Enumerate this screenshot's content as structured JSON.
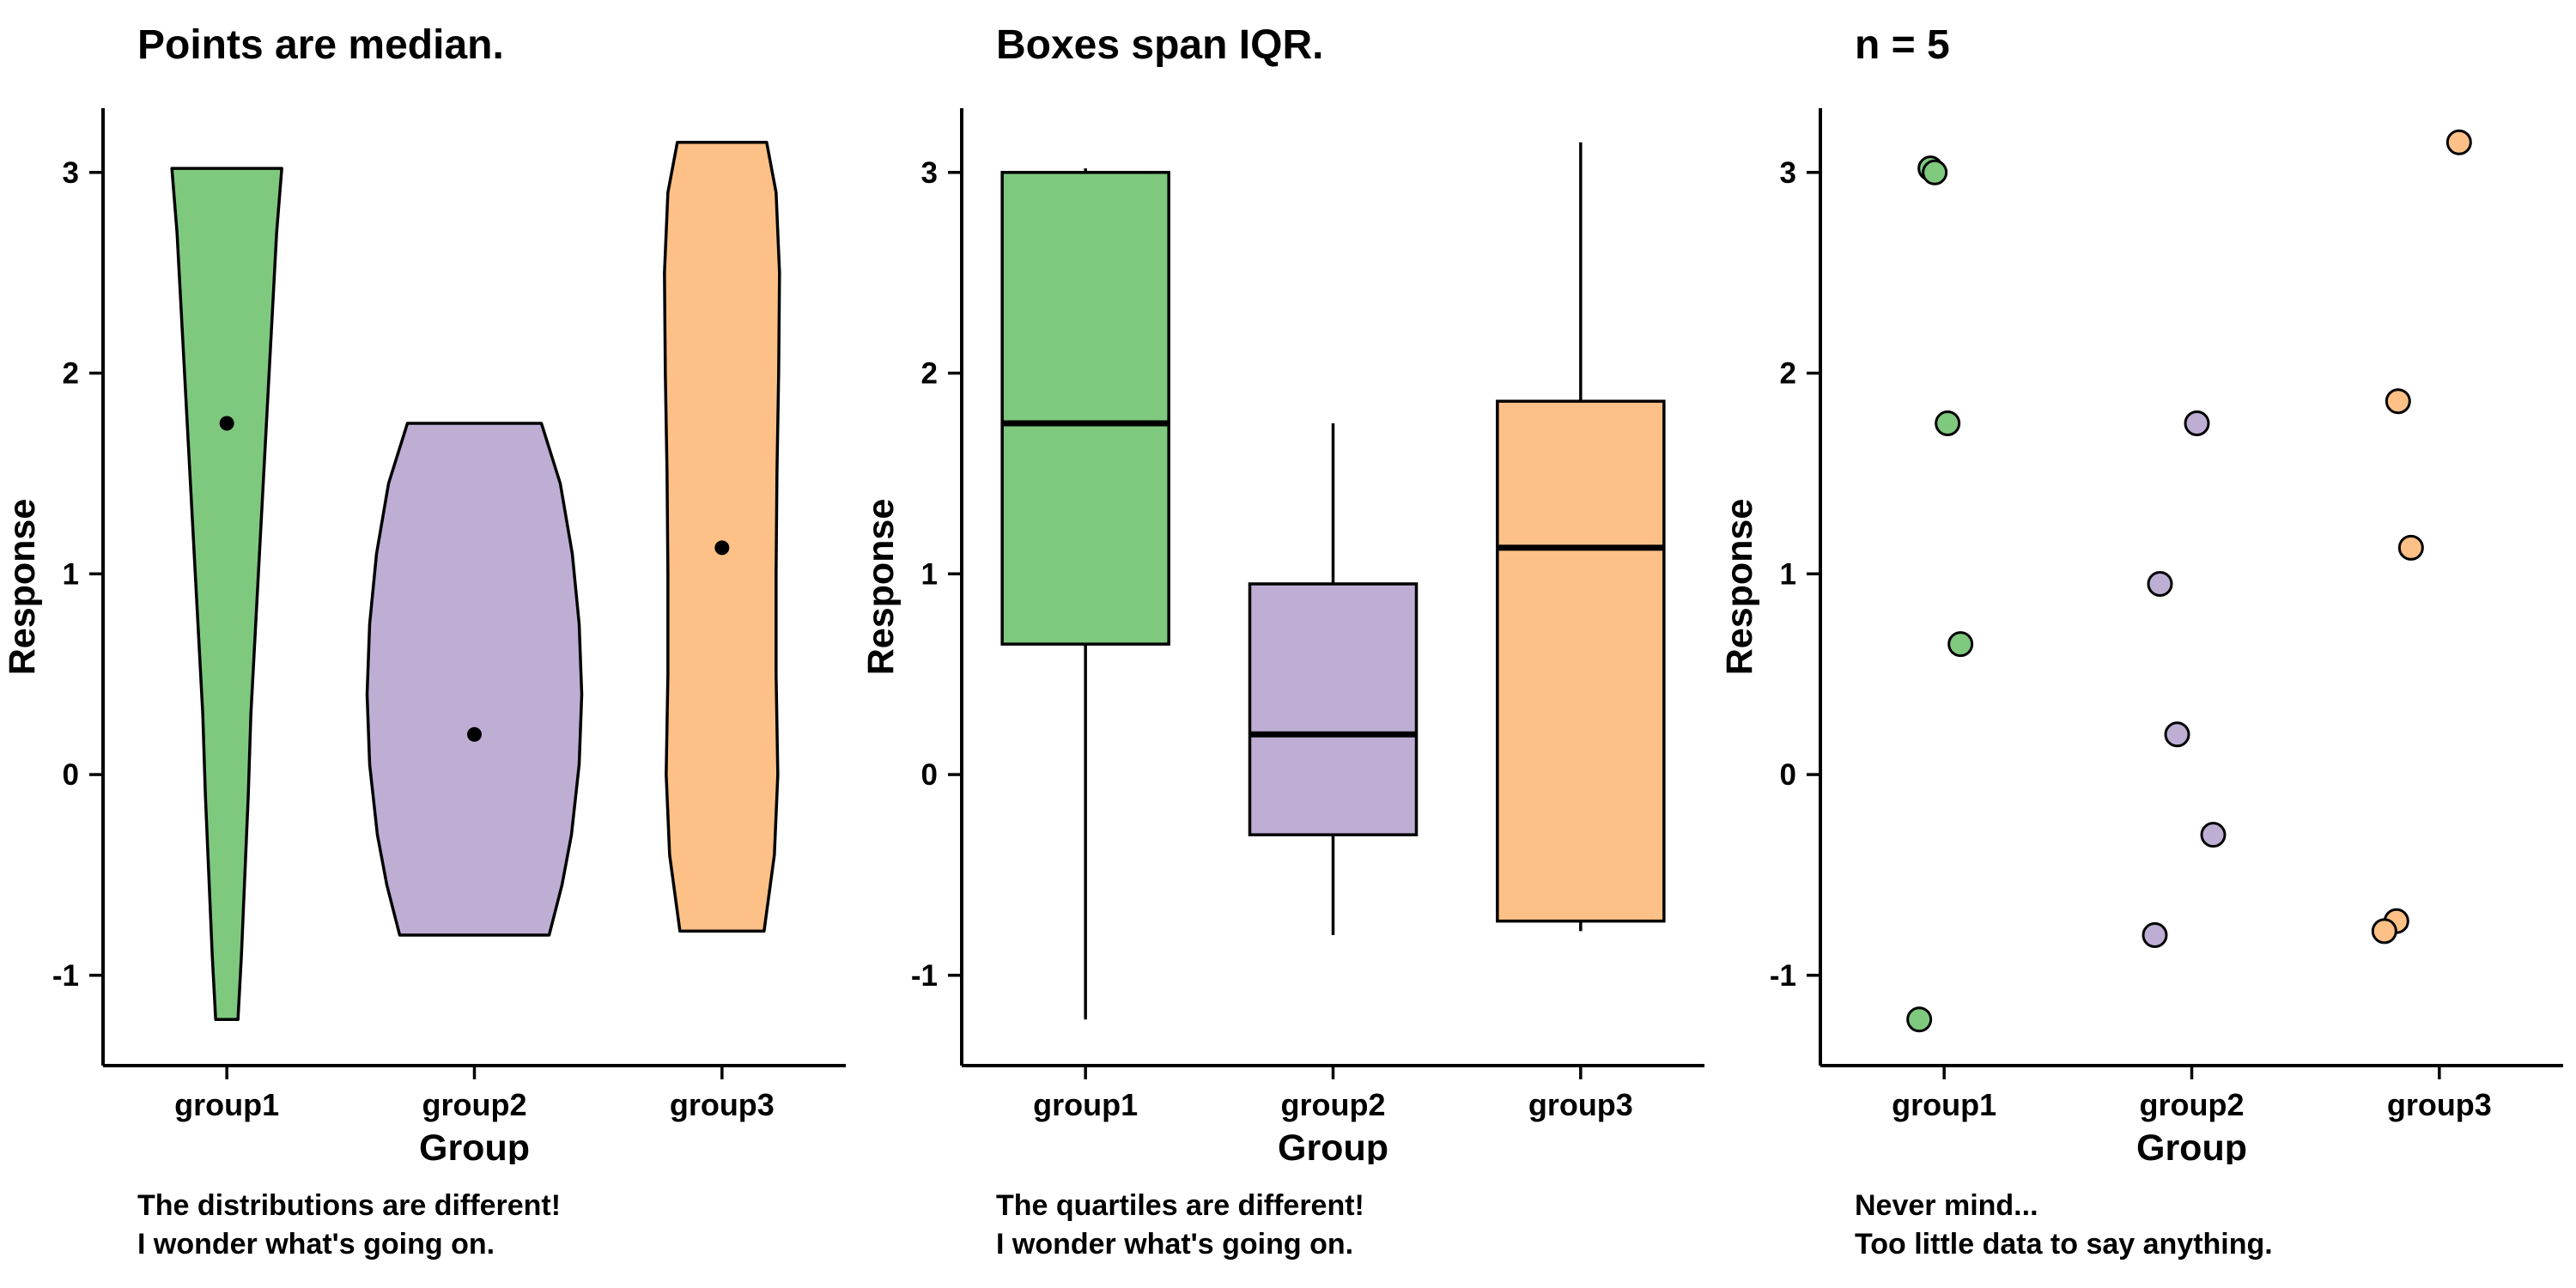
{
  "colors": {
    "group1": "#7FC97F",
    "group2": "#BEAED4",
    "group3": "#FDC086",
    "axis": "#000000",
    "background": "#FFFFFF"
  },
  "chart_data": [
    {
      "type": "violin",
      "title": "Points are median.",
      "xlabel": "Group",
      "ylabel": "Response",
      "categories": [
        "group1",
        "group2",
        "group3"
      ],
      "yticks": [
        -1,
        0,
        1,
        2,
        3
      ],
      "ylim": [
        -1.45,
        3.32
      ],
      "grid": false,
      "medians": [
        1.75,
        0.2,
        1.13
      ],
      "violins": [
        {
          "group": "group1",
          "color": "#7FC97F",
          "outline": [
            [
              3.02,
              64
            ],
            [
              2.7,
              58
            ],
            [
              2.3,
              53
            ],
            [
              1.9,
              48
            ],
            [
              1.5,
              43
            ],
            [
              1.1,
              38
            ],
            [
              0.7,
              33
            ],
            [
              0.3,
              28
            ],
            [
              -0.1,
              25
            ],
            [
              -0.5,
              21
            ],
            [
              -0.9,
              17
            ],
            [
              -1.22,
              13
            ]
          ]
        },
        {
          "group": "group2",
          "color": "#BEAED4",
          "outline": [
            [
              1.75,
              78
            ],
            [
              1.45,
              100
            ],
            [
              1.1,
              114
            ],
            [
              0.75,
              122
            ],
            [
              0.4,
              125
            ],
            [
              0.05,
              122
            ],
            [
              -0.3,
              113
            ],
            [
              -0.55,
              102
            ],
            [
              -0.8,
              87
            ]
          ]
        },
        {
          "group": "group3",
          "color": "#FDC086",
          "outline": [
            [
              3.15,
              52
            ],
            [
              2.9,
              63
            ],
            [
              2.5,
              67
            ],
            [
              2.0,
              66
            ],
            [
              1.5,
              64
            ],
            [
              1.0,
              63
            ],
            [
              0.5,
              63
            ],
            [
              0.0,
              65
            ],
            [
              -0.4,
              61
            ],
            [
              -0.78,
              49
            ]
          ]
        }
      ],
      "caption": [
        "The distributions are different!",
        "I wonder what's going on."
      ]
    },
    {
      "type": "box",
      "title": "Boxes span IQR.",
      "xlabel": "Group",
      "ylabel": "Response",
      "categories": [
        "group1",
        "group2",
        "group3"
      ],
      "yticks": [
        -1,
        0,
        1,
        2,
        3
      ],
      "ylim": [
        -1.45,
        3.32
      ],
      "grid": false,
      "boxes": [
        {
          "group": "group1",
          "color": "#7FC97F",
          "min": -1.22,
          "q1": 0.65,
          "median": 1.75,
          "q3": 3.0,
          "max": 3.02
        },
        {
          "group": "group2",
          "color": "#BEAED4",
          "min": -0.8,
          "q1": -0.3,
          "median": 0.2,
          "q3": 0.95,
          "max": 1.75
        },
        {
          "group": "group3",
          "color": "#FDC086",
          "min": -0.78,
          "q1": -0.73,
          "median": 1.13,
          "q3": 1.86,
          "max": 3.15
        }
      ],
      "caption": [
        "The quartiles are different!",
        "I wonder what's going on."
      ]
    },
    {
      "type": "scatter",
      "title": "n = 5",
      "xlabel": "Group",
      "ylabel": "Response",
      "categories": [
        "group1",
        "group2",
        "group3"
      ],
      "yticks": [
        -1,
        0,
        1,
        2,
        3
      ],
      "ylim": [
        -1.45,
        3.32
      ],
      "grid": false,
      "n_per_group": 5,
      "points": [
        {
          "group": "group1",
          "color": "#7FC97F",
          "values": [
            3.02,
            3.0,
            1.75,
            0.65,
            -1.22
          ],
          "jitter": [
            -16,
            -11,
            4,
            19,
            -29
          ]
        },
        {
          "group": "group2",
          "color": "#BEAED4",
          "values": [
            1.75,
            0.95,
            0.2,
            -0.3,
            -0.8
          ],
          "jitter": [
            6,
            -37,
            -17,
            25,
            -43
          ]
        },
        {
          "group": "group3",
          "color": "#FDC086",
          "values": [
            3.15,
            1.86,
            1.13,
            -0.73,
            -0.78
          ],
          "jitter": [
            23,
            -48,
            -33,
            -50,
            -64
          ]
        }
      ],
      "caption": [
        "Never mind...",
        "Too little data to say anything."
      ]
    }
  ]
}
